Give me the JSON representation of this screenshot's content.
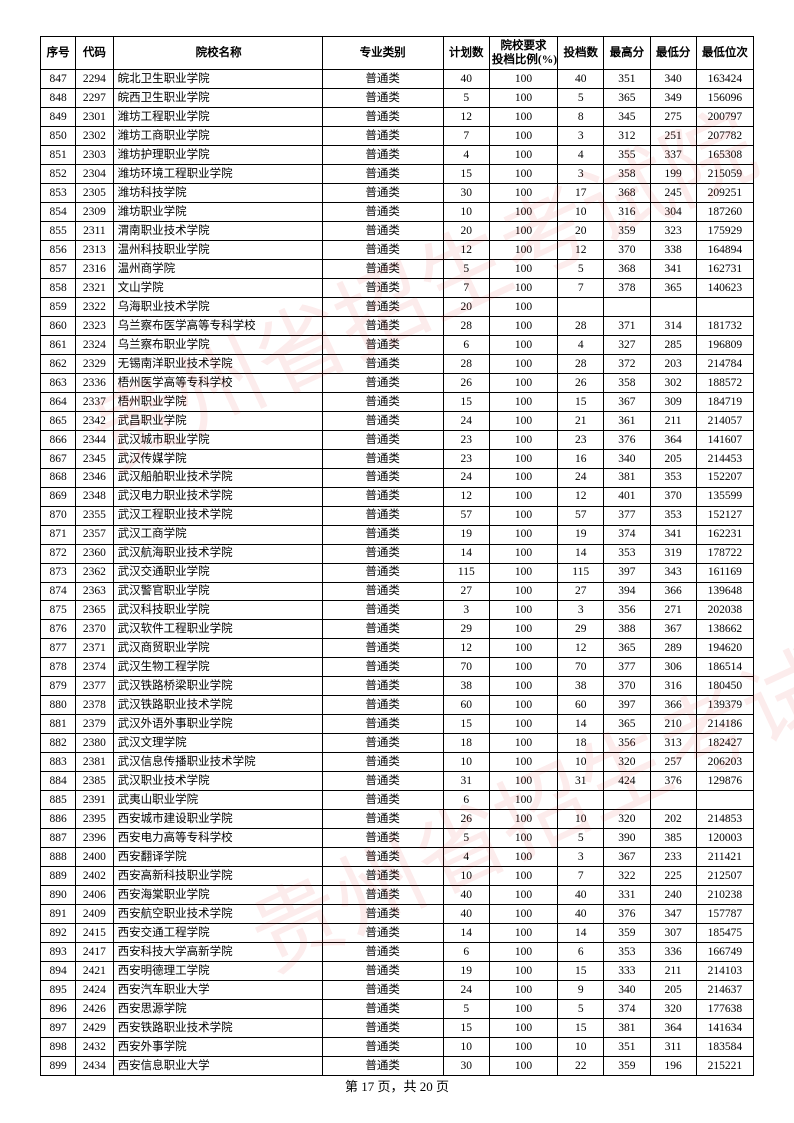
{
  "header": {
    "seq": "序号",
    "code": "代码",
    "name": "院校名称",
    "category": "专业类别",
    "plan": "计划数",
    "ratio": "院校要求\n投档比例(%)",
    "filed": "投档数",
    "high": "最高分",
    "low": "最低分",
    "rank": "最低位次"
  },
  "footer": "第 17 页，共 20 页",
  "style": {
    "font_size_cell": 11.5,
    "font_size_header": 11.5,
    "border_color": "#000000",
    "background": "#ffffff",
    "watermark_color": "rgba(220,40,40,0.09)",
    "watermark_text": "贵州省招生考试院"
  },
  "columns": [
    {
      "key": "seq",
      "class": "col-seq"
    },
    {
      "key": "code",
      "class": "col-code"
    },
    {
      "key": "name",
      "class": "col-name"
    },
    {
      "key": "category",
      "class": "col-cat"
    },
    {
      "key": "plan",
      "class": "col-plan"
    },
    {
      "key": "ratio",
      "class": "col-ratio"
    },
    {
      "key": "filed",
      "class": "col-num"
    },
    {
      "key": "high",
      "class": "col-high"
    },
    {
      "key": "low",
      "class": "col-low"
    },
    {
      "key": "rank",
      "class": "col-rank"
    }
  ],
  "rows": [
    [
      "847",
      "2294",
      "皖北卫生职业学院",
      "普通类",
      "40",
      "100",
      "40",
      "351",
      "340",
      "163424"
    ],
    [
      "848",
      "2297",
      "皖西卫生职业学院",
      "普通类",
      "5",
      "100",
      "5",
      "365",
      "349",
      "156096"
    ],
    [
      "849",
      "2301",
      "潍坊工程职业学院",
      "普通类",
      "12",
      "100",
      "8",
      "345",
      "275",
      "200797"
    ],
    [
      "850",
      "2302",
      "潍坊工商职业学院",
      "普通类",
      "7",
      "100",
      "3",
      "312",
      "251",
      "207782"
    ],
    [
      "851",
      "2303",
      "潍坊护理职业学院",
      "普通类",
      "4",
      "100",
      "4",
      "355",
      "337",
      "165308"
    ],
    [
      "852",
      "2304",
      "潍坊环境工程职业学院",
      "普通类",
      "15",
      "100",
      "3",
      "358",
      "199",
      "215059"
    ],
    [
      "853",
      "2305",
      "潍坊科技学院",
      "普通类",
      "30",
      "100",
      "17",
      "368",
      "245",
      "209251"
    ],
    [
      "854",
      "2309",
      "潍坊职业学院",
      "普通类",
      "10",
      "100",
      "10",
      "316",
      "304",
      "187260"
    ],
    [
      "855",
      "2311",
      "渭南职业技术学院",
      "普通类",
      "20",
      "100",
      "20",
      "359",
      "323",
      "175929"
    ],
    [
      "856",
      "2313",
      "温州科技职业学院",
      "普通类",
      "12",
      "100",
      "12",
      "370",
      "338",
      "164894"
    ],
    [
      "857",
      "2316",
      "温州商学院",
      "普通类",
      "5",
      "100",
      "5",
      "368",
      "341",
      "162731"
    ],
    [
      "858",
      "2321",
      "文山学院",
      "普通类",
      "7",
      "100",
      "7",
      "378",
      "365",
      "140623"
    ],
    [
      "859",
      "2322",
      "乌海职业技术学院",
      "普通类",
      "20",
      "100",
      "",
      "",
      "",
      ""
    ],
    [
      "860",
      "2323",
      "乌兰察布医学高等专科学校",
      "普通类",
      "28",
      "100",
      "28",
      "371",
      "314",
      "181732"
    ],
    [
      "861",
      "2324",
      "乌兰察布职业学院",
      "普通类",
      "6",
      "100",
      "4",
      "327",
      "285",
      "196809"
    ],
    [
      "862",
      "2329",
      "无锡南洋职业技术学院",
      "普通类",
      "28",
      "100",
      "28",
      "372",
      "203",
      "214784"
    ],
    [
      "863",
      "2336",
      "梧州医学高等专科学校",
      "普通类",
      "26",
      "100",
      "26",
      "358",
      "302",
      "188572"
    ],
    [
      "864",
      "2337",
      "梧州职业学院",
      "普通类",
      "15",
      "100",
      "15",
      "367",
      "309",
      "184719"
    ],
    [
      "865",
      "2342",
      "武昌职业学院",
      "普通类",
      "24",
      "100",
      "21",
      "361",
      "211",
      "214057"
    ],
    [
      "866",
      "2344",
      "武汉城市职业学院",
      "普通类",
      "23",
      "100",
      "23",
      "376",
      "364",
      "141607"
    ],
    [
      "867",
      "2345",
      "武汉传媒学院",
      "普通类",
      "23",
      "100",
      "16",
      "340",
      "205",
      "214453"
    ],
    [
      "868",
      "2346",
      "武汉船舶职业技术学院",
      "普通类",
      "24",
      "100",
      "24",
      "381",
      "353",
      "152207"
    ],
    [
      "869",
      "2348",
      "武汉电力职业技术学院",
      "普通类",
      "12",
      "100",
      "12",
      "401",
      "370",
      "135599"
    ],
    [
      "870",
      "2355",
      "武汉工程职业技术学院",
      "普通类",
      "57",
      "100",
      "57",
      "377",
      "353",
      "152127"
    ],
    [
      "871",
      "2357",
      "武汉工商学院",
      "普通类",
      "19",
      "100",
      "19",
      "374",
      "341",
      "162231"
    ],
    [
      "872",
      "2360",
      "武汉航海职业技术学院",
      "普通类",
      "14",
      "100",
      "14",
      "353",
      "319",
      "178722"
    ],
    [
      "873",
      "2362",
      "武汉交通职业学院",
      "普通类",
      "115",
      "100",
      "115",
      "397",
      "343",
      "161169"
    ],
    [
      "874",
      "2363",
      "武汉警官职业学院",
      "普通类",
      "27",
      "100",
      "27",
      "394",
      "366",
      "139648"
    ],
    [
      "875",
      "2365",
      "武汉科技职业学院",
      "普通类",
      "3",
      "100",
      "3",
      "356",
      "271",
      "202038"
    ],
    [
      "876",
      "2370",
      "武汉软件工程职业学院",
      "普通类",
      "29",
      "100",
      "29",
      "388",
      "367",
      "138662"
    ],
    [
      "877",
      "2371",
      "武汉商贸职业学院",
      "普通类",
      "12",
      "100",
      "12",
      "365",
      "289",
      "194620"
    ],
    [
      "878",
      "2374",
      "武汉生物工程学院",
      "普通类",
      "70",
      "100",
      "70",
      "377",
      "306",
      "186514"
    ],
    [
      "879",
      "2377",
      "武汉铁路桥梁职业学院",
      "普通类",
      "38",
      "100",
      "38",
      "370",
      "316",
      "180450"
    ],
    [
      "880",
      "2378",
      "武汉铁路职业技术学院",
      "普通类",
      "60",
      "100",
      "60",
      "397",
      "366",
      "139379"
    ],
    [
      "881",
      "2379",
      "武汉外语外事职业学院",
      "普通类",
      "15",
      "100",
      "14",
      "365",
      "210",
      "214186"
    ],
    [
      "882",
      "2380",
      "武汉文理学院",
      "普通类",
      "18",
      "100",
      "18",
      "356",
      "313",
      "182427"
    ],
    [
      "883",
      "2381",
      "武汉信息传播职业技术学院",
      "普通类",
      "10",
      "100",
      "10",
      "320",
      "257",
      "206203"
    ],
    [
      "884",
      "2385",
      "武汉职业技术学院",
      "普通类",
      "31",
      "100",
      "31",
      "424",
      "376",
      "129876"
    ],
    [
      "885",
      "2391",
      "武夷山职业学院",
      "普通类",
      "6",
      "100",
      "",
      "",
      "",
      ""
    ],
    [
      "886",
      "2395",
      "西安城市建设职业学院",
      "普通类",
      "26",
      "100",
      "10",
      "320",
      "202",
      "214853"
    ],
    [
      "887",
      "2396",
      "西安电力高等专科学校",
      "普通类",
      "5",
      "100",
      "5",
      "390",
      "385",
      "120003"
    ],
    [
      "888",
      "2400",
      "西安翻译学院",
      "普通类",
      "4",
      "100",
      "3",
      "367",
      "233",
      "211421"
    ],
    [
      "889",
      "2402",
      "西安高新科技职业学院",
      "普通类",
      "10",
      "100",
      "7",
      "322",
      "225",
      "212507"
    ],
    [
      "890",
      "2406",
      "西安海棠职业学院",
      "普通类",
      "40",
      "100",
      "40",
      "331",
      "240",
      "210238"
    ],
    [
      "891",
      "2409",
      "西安航空职业技术学院",
      "普通类",
      "40",
      "100",
      "40",
      "376",
      "347",
      "157787"
    ],
    [
      "892",
      "2415",
      "西安交通工程学院",
      "普通类",
      "14",
      "100",
      "14",
      "359",
      "307",
      "185475"
    ],
    [
      "893",
      "2417",
      "西安科技大学高新学院",
      "普通类",
      "6",
      "100",
      "6",
      "353",
      "336",
      "166749"
    ],
    [
      "894",
      "2421",
      "西安明德理工学院",
      "普通类",
      "19",
      "100",
      "15",
      "333",
      "211",
      "214103"
    ],
    [
      "895",
      "2424",
      "西安汽车职业大学",
      "普通类",
      "24",
      "100",
      "9",
      "340",
      "205",
      "214637"
    ],
    [
      "896",
      "2426",
      "西安思源学院",
      "普通类",
      "5",
      "100",
      "5",
      "374",
      "320",
      "177638"
    ],
    [
      "897",
      "2429",
      "西安铁路职业技术学院",
      "普通类",
      "15",
      "100",
      "15",
      "381",
      "364",
      "141634"
    ],
    [
      "898",
      "2432",
      "西安外事学院",
      "普通类",
      "10",
      "100",
      "10",
      "351",
      "311",
      "183584"
    ],
    [
      "899",
      "2434",
      "西安信息职业大学",
      "普通类",
      "30",
      "100",
      "22",
      "359",
      "196",
      "215221"
    ]
  ]
}
